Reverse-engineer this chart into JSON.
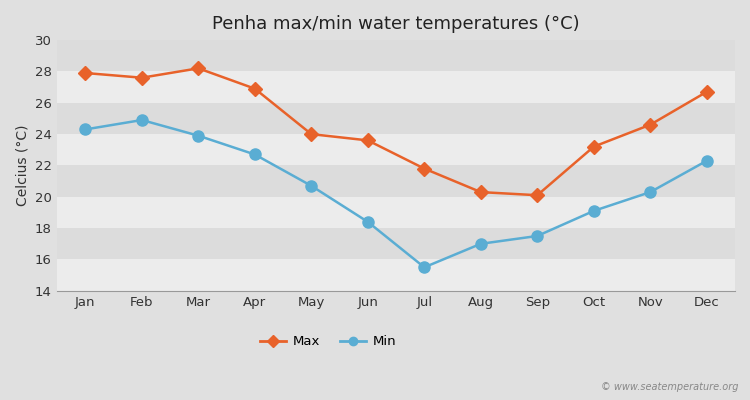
{
  "title": "Penha max/min water temperatures (°C)",
  "ylabel": "Celcius (°C)",
  "months": [
    "Jan",
    "Feb",
    "Mar",
    "Apr",
    "May",
    "Jun",
    "Jul",
    "Aug",
    "Sep",
    "Oct",
    "Nov",
    "Dec"
  ],
  "max_values": [
    27.9,
    27.6,
    28.2,
    26.9,
    24.0,
    23.6,
    21.8,
    20.3,
    20.1,
    23.2,
    24.6,
    26.7
  ],
  "min_values": [
    24.3,
    24.9,
    23.9,
    22.7,
    20.7,
    18.4,
    15.5,
    17.0,
    17.5,
    19.1,
    20.3,
    22.3
  ],
  "max_color": "#e8622a",
  "min_color": "#5aadd3",
  "outer_bg": "#e0e0e0",
  "band_light": "#ececec",
  "band_dark": "#dcdcdc",
  "ylim": [
    14,
    30
  ],
  "yticks": [
    14,
    16,
    18,
    20,
    22,
    24,
    26,
    28,
    30
  ],
  "legend_labels": [
    "Max",
    "Min"
  ],
  "watermark": "© www.seatemperature.org",
  "title_fontsize": 13,
  "axis_label_fontsize": 10,
  "tick_fontsize": 9.5,
  "marker_size_max": 7,
  "marker_size_min": 8,
  "line_width": 1.8
}
